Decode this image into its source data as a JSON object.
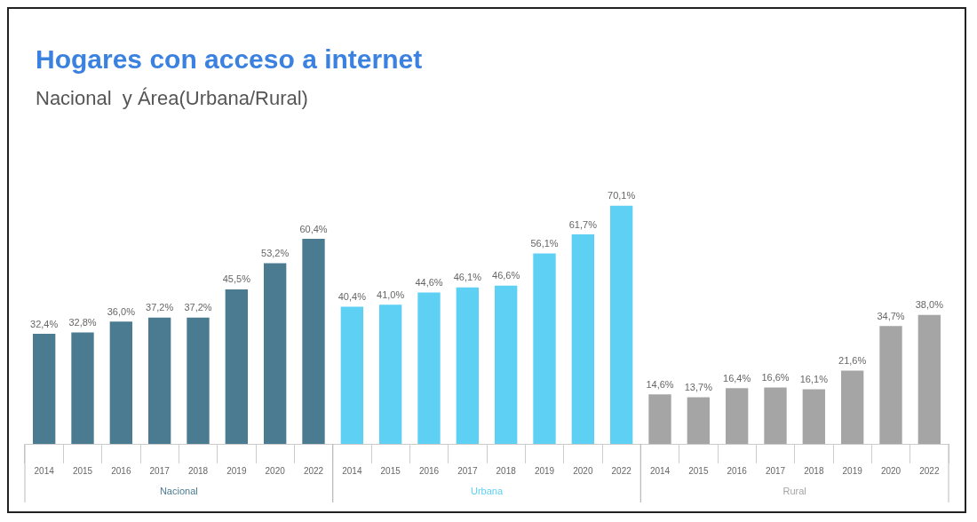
{
  "chart_data": {
    "type": "bar",
    "title": "Hogares con acceso a internet",
    "subtitle": "Nacional  y Área(Urbana/Rural)",
    "categories": [
      "2014",
      "2015",
      "2016",
      "2017",
      "2018",
      "2019",
      "2020",
      "2022",
      "2014",
      "2015",
      "2016",
      "2017",
      "2018",
      "2019",
      "2020",
      "2022",
      "2014",
      "2015",
      "2016",
      "2017",
      "2018",
      "2019",
      "2020",
      "2022"
    ],
    "series": [
      {
        "name": "Nacional",
        "color": "#4b7b91",
        "values": [
          32.4,
          32.8,
          36.0,
          37.2,
          37.2,
          45.5,
          53.2,
          60.4,
          null,
          null,
          null,
          null,
          null,
          null,
          null,
          null,
          null,
          null,
          null,
          null,
          null,
          null,
          null,
          null
        ],
        "value_labels": [
          "32,4%",
          "32,8%",
          "36,0%",
          "37,2%",
          "37,2%",
          "45,5%",
          "53,2%",
          "60,4%",
          null,
          null,
          null,
          null,
          null,
          null,
          null,
          null,
          null,
          null,
          null,
          null,
          null,
          null,
          null,
          null
        ]
      },
      {
        "name": "Urbana",
        "color": "#5dd0f4",
        "values": [
          null,
          null,
          null,
          null,
          null,
          null,
          null,
          null,
          40.4,
          41.0,
          44.6,
          46.1,
          46.6,
          56.1,
          61.7,
          70.1,
          null,
          null,
          null,
          null,
          null,
          null,
          null,
          null
        ],
        "value_labels": [
          null,
          null,
          null,
          null,
          null,
          null,
          null,
          null,
          "40,4%",
          "41,0%",
          "44,6%",
          "46,1%",
          "46,6%",
          "56,1%",
          "61,7%",
          "70,1%",
          null,
          null,
          null,
          null,
          null,
          null,
          null,
          null
        ]
      },
      {
        "name": "Rural",
        "color": "#a5a5a5",
        "values": [
          null,
          null,
          null,
          null,
          null,
          null,
          null,
          null,
          null,
          null,
          null,
          null,
          null,
          null,
          null,
          null,
          14.6,
          13.7,
          16.4,
          16.6,
          16.1,
          21.6,
          34.7,
          38.0
        ],
        "value_labels": [
          null,
          null,
          null,
          null,
          null,
          null,
          null,
          null,
          null,
          null,
          null,
          null,
          null,
          null,
          null,
          null,
          "14,6%",
          "13,7%",
          "16,4%",
          "16,6%",
          "16,1%",
          "21,6%",
          "34,7%",
          "38,0%"
        ]
      }
    ],
    "legend": false
  }
}
